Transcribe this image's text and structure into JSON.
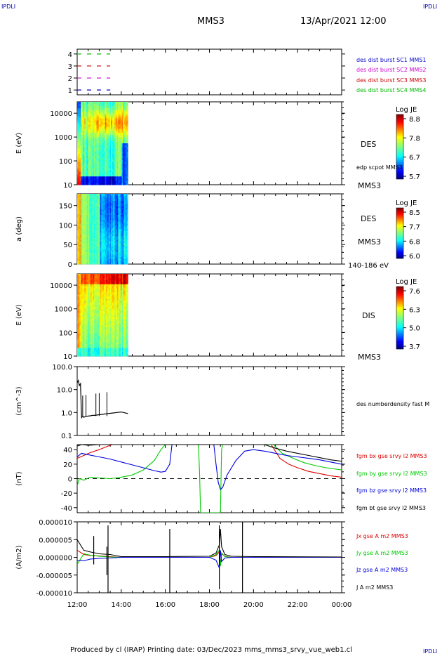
{
  "header": {
    "corner_left_top": "IPDLI",
    "corner_right_top": "IPDLI",
    "corner_left_bottom": "",
    "corner_right_bottom": "IPDLI",
    "spacecraft": "MMS3",
    "datetime": "13/Apr/2021 12:00"
  },
  "footer": {
    "text": "Produced by cl (IRAP)   Printing date: 03/Dec/2023   mms_mms3_srvy_vue_web1.cl"
  },
  "colors": {
    "mms1": "#0000cc",
    "mms2": "#cc00cc",
    "mms3": "#cc0000",
    "mms4": "#00bb00",
    "bx": "#dd0000",
    "by": "#00cc00",
    "bz": "#0000dd",
    "bt": "#000000"
  },
  "chart_data": [
    {
      "type": "line",
      "panel": "burst-availability",
      "ylabel": "",
      "yticks": [
        "1",
        "2",
        "3",
        "4"
      ],
      "ylim": [
        0.6,
        4.4
      ],
      "x_range": [
        "12:00",
        "00:00"
      ],
      "series": [
        {
          "name": "des dist burst SC1 MMS1",
          "y": 1,
          "x": [
            12.0,
            13.5
          ],
          "color_key": "mms1"
        },
        {
          "name": "des dist burst SC2 MMS2",
          "y": 2,
          "x": [
            12.0,
            13.5
          ],
          "color_key": "mms2"
        },
        {
          "name": "des dist burst SC3 MMS3",
          "y": 3,
          "x": [
            12.0,
            13.5
          ],
          "color_key": "mms3"
        },
        {
          "name": "des dist burst SC4 MMS4",
          "y": 4,
          "x": [
            12.0,
            13.5
          ],
          "color_key": "mms4"
        }
      ]
    },
    {
      "type": "heatmap",
      "panel": "des-energy",
      "ylabel": "E (eV)",
      "yscale": "log",
      "yticks": [
        "10",
        "100",
        "1000",
        "10000"
      ],
      "ylim": [
        10,
        30000
      ],
      "x_extent": [
        12.0,
        14.3
      ],
      "colorbar_title": "Log JE",
      "colorbar_ticks": [
        "8.8",
        "7.8",
        "6.7",
        "5.7"
      ],
      "instrument": "DES",
      "spacecraft": "MMS3",
      "note": "edp scpot MMS3"
    },
    {
      "type": "heatmap",
      "panel": "des-pitch",
      "ylabel": "a (deg)",
      "yticks": [
        "0",
        "50",
        "100",
        "150"
      ],
      "ylim": [
        0,
        180
      ],
      "x_extent": [
        12.0,
        14.3
      ],
      "colorbar_title": "Log JE",
      "colorbar_ticks": [
        "8.5",
        "7.7",
        "6.8",
        "6.0"
      ],
      "instrument": "DES",
      "spacecraft": "MMS3",
      "energy_band": "140-186 eV"
    },
    {
      "type": "heatmap",
      "panel": "dis-energy",
      "ylabel": "E (eV)",
      "yscale": "log",
      "yticks": [
        "10",
        "100",
        "1000",
        "10000"
      ],
      "ylim": [
        10,
        30000
      ],
      "x_extent": [
        12.0,
        14.3
      ],
      "colorbar_title": "Log JE",
      "colorbar_ticks": [
        "7.6",
        "6.3",
        "5.0",
        "3.7"
      ],
      "instrument": "DIS",
      "spacecraft": "MMS3"
    },
    {
      "type": "line",
      "panel": "density",
      "ylabel": "(cm^-3)",
      "yscale": "log",
      "yticks": [
        "0.1",
        "1.0",
        "10.0",
        "100.0"
      ],
      "ylim": [
        0.1,
        100
      ],
      "series": [
        {
          "name": "des numberdensity fast M",
          "color_key": "bt",
          "x": [
            12.0,
            12.05,
            12.1,
            12.15,
            12.2,
            12.25,
            12.3,
            12.35,
            12.4,
            12.5,
            12.6,
            12.7,
            12.8,
            12.9,
            13.0,
            13.2,
            13.4,
            13.6,
            13.8,
            14.0,
            14.2,
            14.3
          ],
          "y": [
            20,
            25,
            15,
            18,
            0.6,
            0.7,
            0.62,
            0.65,
            0.68,
            0.7,
            0.72,
            0.75,
            0.75,
            0.78,
            0.8,
            0.85,
            0.9,
            0.95,
            1.0,
            1.05,
            0.95,
            0.9
          ]
        }
      ]
    },
    {
      "type": "line",
      "panel": "magnetic-field",
      "ylabel": "(nT)",
      "yticks": [
        "-40",
        "-20",
        "0",
        "20",
        "40"
      ],
      "ylim": [
        -47,
        47
      ],
      "series": [
        {
          "name": "fgm bx gse srvy l2 MMS3",
          "color_key": "bx",
          "x": [
            12.0,
            12.3,
            12.6,
            13.0,
            13.4,
            13.6,
            20.8,
            21.2,
            21.6,
            22.0,
            22.5,
            23.0,
            23.5,
            24.0
          ],
          "y": [
            28,
            32,
            36,
            40,
            45,
            47,
            47,
            28,
            20,
            15,
            10,
            7,
            4,
            2
          ]
        },
        {
          "name": "fgm by gse srvy l2 MMS3",
          "color_key": "by",
          "x": [
            12.0,
            12.1,
            12.3,
            12.6,
            13.0,
            13.5,
            14.0,
            14.5,
            15.0,
            15.5,
            15.8,
            16.0,
            17.5,
            17.55,
            17.6,
            18.5,
            18.55,
            18.6,
            20.9,
            21.3,
            21.8,
            22.3,
            22.8,
            23.3,
            24.0
          ],
          "y": [
            -10,
            0,
            -2,
            2,
            1,
            0,
            2,
            5,
            12,
            25,
            40,
            47,
            47,
            10,
            -47,
            -47,
            40,
            47,
            47,
            35,
            28,
            22,
            18,
            15,
            12
          ]
        },
        {
          "name": "fgm bz gse srvy l2 MMS3",
          "color_key": "bz",
          "x": [
            12.0,
            12.2,
            12.5,
            13.0,
            13.5,
            14.0,
            14.5,
            15.0,
            15.5,
            15.8,
            16.0,
            16.2,
            16.3,
            18.2,
            18.3,
            18.4,
            18.5,
            18.6,
            18.8,
            19.2,
            19.6,
            20.0,
            20.5,
            21.0,
            21.5,
            22.0,
            22.5,
            23.0,
            23.5,
            24.0
          ],
          "y": [
            30,
            35,
            33,
            30,
            27,
            23,
            19,
            15,
            11,
            9,
            10,
            20,
            47,
            47,
            20,
            -5,
            -15,
            -12,
            5,
            25,
            38,
            40,
            38,
            35,
            32,
            30,
            28,
            26,
            23,
            20
          ]
        },
        {
          "name": "fgm bt gse srvy l2 MMS3",
          "color_key": "bt",
          "x": [
            12.0,
            12.2,
            12.5,
            13.0,
            13.5,
            14.0,
            20.5,
            21.0,
            21.5,
            22.0,
            22.5,
            23.0,
            23.5,
            24.0
          ],
          "y": [
            45,
            47,
            46,
            47,
            47,
            47,
            47,
            42,
            38,
            35,
            32,
            29,
            26,
            24
          ]
        }
      ],
      "zero_line": true
    },
    {
      "type": "line",
      "panel": "current-density",
      "ylabel": "(A/m2)",
      "yticks": [
        "-0.000010",
        "-0.000005",
        "0.000000",
        "0.000005",
        "0.000010"
      ],
      "ylim": [
        -1e-05,
        1e-05
      ],
      "series": [
        {
          "name": "Jx gse A m2 MMS3",
          "color_key": "bx",
          "x": [
            12.0,
            12.3,
            12.6,
            13.0,
            13.5,
            14.0,
            16.0,
            18.0,
            18.3,
            18.45,
            18.5,
            18.55,
            18.7,
            19.0,
            20.0,
            24.0
          ],
          "y": [
            2e-06,
            8e-07,
            5e-07,
            4e-07,
            2e-07,
            0.0,
            0.0,
            0.0,
            5e-07,
            1.5e-06,
            -2e-06,
            1e-06,
            3e-07,
            0.0,
            0.0,
            0.0
          ]
        },
        {
          "name": "Jy gse A m2 MMS3",
          "color_key": "by",
          "x": [
            12.0,
            12.3,
            12.6,
            13.0,
            13.5,
            14.0,
            16.0,
            18.0,
            18.3,
            18.45,
            18.5,
            18.55,
            18.7,
            19.0,
            20.0,
            24.0
          ],
          "y": [
            -2e-06,
            1e-06,
            6e-07,
            3e-07,
            1e-07,
            0.0,
            0.0,
            0.0,
            8e-07,
            2e-06,
            -2.5e-06,
            1.2e-06,
            2e-07,
            0.0,
            0.0,
            0.0
          ]
        },
        {
          "name": "Jz gse A m2 MMS3",
          "color_key": "bz",
          "x": [
            12.0,
            12.3,
            12.6,
            13.0,
            13.5,
            14.0,
            16.0,
            18.0,
            18.3,
            18.45,
            18.5,
            18.55,
            18.7,
            19.0,
            20.0,
            24.0
          ],
          "y": [
            -1e-06,
            -1e-06,
            -5e-07,
            -3e-07,
            -2e-07,
            0.0,
            0.0,
            0.0,
            -8e-07,
            -3e-06,
            2e-06,
            -1.2e-06,
            -2e-07,
            0.0,
            0.0,
            0.0
          ]
        },
        {
          "name": "J A m2 MMS3",
          "color_key": "bt",
          "x": [
            12.0,
            12.3,
            12.6,
            13.0,
            13.5,
            14.0,
            16.0,
            18.0,
            18.3,
            18.45,
            18.5,
            18.55,
            18.7,
            19.0,
            20.0,
            24.0
          ],
          "y": [
            5e-06,
            2e-06,
            1.5e-06,
            1e-06,
            8e-07,
            2e-07,
            2e-07,
            3e-07,
            1.2e-06,
            3.5e-06,
            8e-06,
            3e-06,
            8e-07,
            3e-07,
            2e-07,
            1e-07
          ]
        }
      ],
      "spikes": [
        {
          "x": 12.75,
          "ymax": 6e-06,
          "ymin": -2e-06
        },
        {
          "x": 13.35,
          "ymax": 3e-06,
          "ymin": -5e-06
        },
        {
          "x": 13.4,
          "ymax": 9e-06,
          "ymin": -1e-05
        },
        {
          "x": 16.2,
          "ymax": 8e-06,
          "ymin": -1e-05
        },
        {
          "x": 18.45,
          "ymax": 9e-06,
          "ymin": -9e-06
        },
        {
          "x": 19.5,
          "ymax": 1e-05,
          "ymin": -1e-05
        }
      ]
    }
  ],
  "time_axis": {
    "ticks": [
      "12:00",
      "14:00",
      "16:00",
      "18:00",
      "20:00",
      "22:00",
      "00:00"
    ],
    "range": [
      12.0,
      24.0
    ]
  }
}
